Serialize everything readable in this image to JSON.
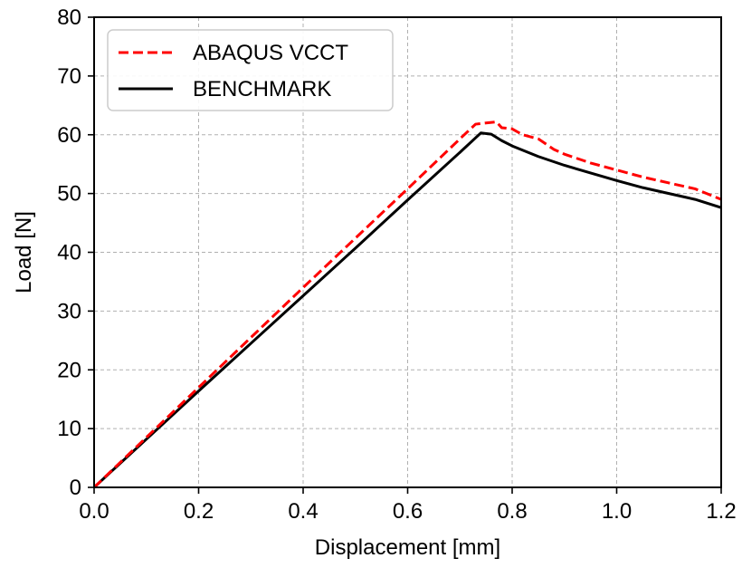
{
  "chart_data": {
    "type": "line",
    "xlabel": "Displacement [mm]",
    "ylabel": "Load [N]",
    "xlim": [
      0.0,
      1.2
    ],
    "ylim": [
      0,
      80
    ],
    "xticks": [
      0.0,
      0.2,
      0.4,
      0.6,
      0.8,
      1.0,
      1.2
    ],
    "yticks": [
      0,
      10,
      20,
      30,
      40,
      50,
      60,
      70,
      80
    ],
    "xtick_labels": [
      "0.0",
      "0.2",
      "0.4",
      "0.6",
      "0.8",
      "1.0",
      "1.2"
    ],
    "ytick_labels": [
      "0",
      "10",
      "20",
      "30",
      "40",
      "50",
      "60",
      "70",
      "80"
    ],
    "grid": true,
    "legend_position": "top-left",
    "series": [
      {
        "name": "ABAQUS VCCT",
        "color": "#ff0000",
        "line_style": "dashed",
        "x": [
          0.0,
          0.1,
          0.2,
          0.3,
          0.4,
          0.5,
          0.6,
          0.7,
          0.73,
          0.75,
          0.77,
          0.78,
          0.8,
          0.82,
          0.85,
          0.88,
          0.9,
          0.95,
          1.0,
          1.05,
          1.1,
          1.15,
          1.2
        ],
        "y": [
          0.0,
          8.5,
          17.0,
          25.5,
          34.0,
          42.4,
          50.8,
          59.3,
          61.8,
          62.0,
          62.2,
          61.2,
          61.0,
          60.0,
          59.3,
          57.5,
          56.7,
          55.2,
          54.0,
          52.8,
          51.8,
          50.8,
          49.0
        ]
      },
      {
        "name": "BENCHMARK",
        "color": "#000000",
        "line_style": "solid",
        "x": [
          0.0,
          0.1,
          0.2,
          0.3,
          0.4,
          0.5,
          0.6,
          0.7,
          0.74,
          0.76,
          0.78,
          0.8,
          0.85,
          0.9,
          0.95,
          1.0,
          1.05,
          1.1,
          1.15,
          1.2
        ],
        "y": [
          0.0,
          8.2,
          16.4,
          24.5,
          32.6,
          40.7,
          48.9,
          57.0,
          60.3,
          60.1,
          59.0,
          58.1,
          56.3,
          54.8,
          53.5,
          52.2,
          51.0,
          50.0,
          49.0,
          47.6
        ]
      }
    ]
  }
}
